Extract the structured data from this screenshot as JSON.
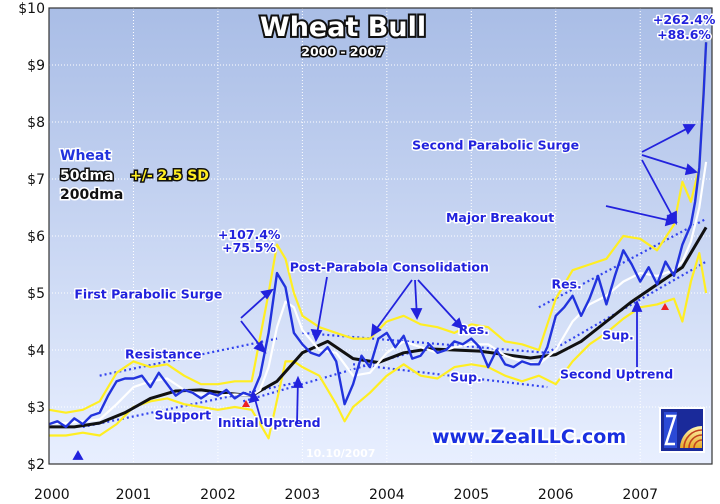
{
  "chart_data": {
    "type": "line",
    "title": "Wheat Bull",
    "subtitle": "2000 - 2007",
    "xlim": [
      2000,
      2007.85
    ],
    "ylim": [
      2,
      10
    ],
    "x_ticks": [
      "2000",
      "2001",
      "2002",
      "2003",
      "2004",
      "2005",
      "2006",
      "2007"
    ],
    "y_ticks": [
      "$2",
      "$3",
      "$4",
      "$5",
      "$6",
      "$7",
      "$8",
      "$9",
      "$10"
    ],
    "grid": true,
    "legend_placement": "left",
    "legend": [
      {
        "label": "Wheat",
        "color": "#2233dd"
      },
      {
        "label": "50dma",
        "color": "#ffffff"
      },
      {
        "label": "+/- 2.5 SD",
        "color": "#ffee22"
      },
      {
        "label": "200dma",
        "color": "#111111"
      }
    ],
    "colors": {
      "wheat": "#2233dd",
      "dma50": "#ffffff",
      "bands": "#ffee22",
      "dma200": "#111111",
      "background_top": "#a9bde6",
      "background_bottom": "#e8efff",
      "annotation": "#2222dd",
      "gain_red": "#ee2222"
    },
    "series": [
      {
        "name": "Wheat",
        "key": "wheat",
        "x": [
          2000.0,
          2000.1,
          2000.2,
          2000.3,
          2000.4,
          2000.5,
          2000.6,
          2000.7,
          2000.8,
          2000.9,
          2001.0,
          2001.1,
          2001.2,
          2001.3,
          2001.4,
          2001.5,
          2001.6,
          2001.7,
          2001.8,
          2001.9,
          2002.0,
          2002.1,
          2002.2,
          2002.3,
          2002.4,
          2002.5,
          2002.6,
          2002.7,
          2002.8,
          2002.9,
          2003.0,
          2003.1,
          2003.2,
          2003.3,
          2003.4,
          2003.5,
          2003.6,
          2003.7,
          2003.8,
          2003.9,
          2004.0,
          2004.1,
          2004.2,
          2004.3,
          2004.4,
          2004.5,
          2004.6,
          2004.7,
          2004.8,
          2004.9,
          2005.0,
          2005.1,
          2005.2,
          2005.3,
          2005.4,
          2005.5,
          2005.6,
          2005.7,
          2005.8,
          2005.9,
          2006.0,
          2006.1,
          2006.2,
          2006.3,
          2006.4,
          2006.5,
          2006.6,
          2006.7,
          2006.8,
          2006.9,
          2007.0,
          2007.1,
          2007.2,
          2007.3,
          2007.4,
          2007.5,
          2007.6,
          2007.65,
          2007.7,
          2007.75,
          2007.78
        ],
        "y": [
          2.7,
          2.75,
          2.65,
          2.8,
          2.7,
          2.85,
          2.9,
          3.2,
          3.45,
          3.5,
          3.5,
          3.55,
          3.35,
          3.6,
          3.4,
          3.2,
          3.3,
          3.25,
          3.15,
          3.25,
          3.2,
          3.3,
          3.15,
          3.25,
          3.2,
          3.55,
          4.3,
          5.35,
          5.1,
          4.3,
          4.1,
          3.95,
          3.9,
          4.05,
          3.8,
          3.05,
          3.4,
          3.9,
          3.7,
          4.2,
          4.3,
          4.05,
          4.25,
          3.85,
          3.9,
          4.1,
          3.95,
          4.0,
          4.15,
          4.1,
          4.2,
          4.05,
          3.7,
          4.0,
          3.75,
          3.7,
          3.8,
          3.75,
          3.75,
          4.05,
          4.6,
          4.75,
          4.95,
          4.6,
          4.9,
          5.3,
          4.8,
          5.3,
          5.75,
          5.5,
          5.2,
          5.45,
          5.15,
          5.55,
          5.3,
          5.85,
          6.2,
          6.6,
          7.2,
          8.5,
          9.4
        ]
      },
      {
        "name": "50dma",
        "key": "dma50",
        "x": [
          2000.0,
          2000.2,
          2000.4,
          2000.6,
          2000.8,
          2001.0,
          2001.2,
          2001.4,
          2001.6,
          2001.8,
          2002.0,
          2002.2,
          2002.4,
          2002.5,
          2002.6,
          2002.7,
          2002.8,
          2002.9,
          2003.0,
          2003.2,
          2003.4,
          2003.6,
          2003.8,
          2004.0,
          2004.2,
          2004.4,
          2004.6,
          2004.8,
          2005.0,
          2005.2,
          2005.4,
          2005.6,
          2005.8,
          2006.0,
          2006.2,
          2006.4,
          2006.6,
          2006.8,
          2007.0,
          2007.2,
          2007.4,
          2007.5,
          2007.6,
          2007.7,
          2007.78
        ],
        "y": [
          2.72,
          2.72,
          2.75,
          2.78,
          3.05,
          3.35,
          3.45,
          3.5,
          3.3,
          3.22,
          3.2,
          3.22,
          3.2,
          3.3,
          3.7,
          4.4,
          4.85,
          4.75,
          4.35,
          4.0,
          3.95,
          3.55,
          3.6,
          3.95,
          4.15,
          4.05,
          3.95,
          4.05,
          4.1,
          4.1,
          3.9,
          3.8,
          3.75,
          4.0,
          4.5,
          4.8,
          4.95,
          5.2,
          5.35,
          5.3,
          5.4,
          5.55,
          5.9,
          6.5,
          7.3
        ]
      },
      {
        "name": "+2.5 SD",
        "key": "upper",
        "x": [
          2000.0,
          2000.2,
          2000.4,
          2000.6,
          2000.8,
          2001.0,
          2001.2,
          2001.4,
          2001.6,
          2001.8,
          2002.0,
          2002.2,
          2002.4,
          2002.6,
          2002.7,
          2002.8,
          2002.9,
          2003.0,
          2003.2,
          2003.4,
          2003.6,
          2003.8,
          2004.0,
          2004.2,
          2004.4,
          2004.6,
          2004.8,
          2005.0,
          2005.2,
          2005.4,
          2005.6,
          2005.8,
          2006.0,
          2006.2,
          2006.4,
          2006.6,
          2006.8,
          2007.0,
          2007.2,
          2007.4,
          2007.5,
          2007.6,
          2007.7,
          2007.78
        ],
        "y": [
          2.95,
          2.9,
          2.95,
          3.1,
          3.6,
          3.8,
          3.7,
          3.75,
          3.55,
          3.4,
          3.4,
          3.45,
          3.45,
          5.0,
          5.85,
          5.6,
          5.0,
          4.6,
          4.4,
          4.3,
          4.2,
          4.2,
          4.5,
          4.6,
          4.45,
          4.4,
          4.3,
          4.45,
          4.4,
          4.15,
          4.1,
          4.0,
          4.9,
          5.4,
          5.5,
          5.6,
          6.0,
          5.95,
          5.75,
          6.2,
          6.95,
          6.6,
          7.2,
          9.4
        ]
      },
      {
        "name": "-2.5 SD",
        "key": "lower",
        "x": [
          2000.0,
          2000.2,
          2000.4,
          2000.6,
          2000.8,
          2001.0,
          2001.2,
          2001.4,
          2001.6,
          2001.8,
          2002.0,
          2002.2,
          2002.4,
          2002.6,
          2002.8,
          2002.9,
          2003.0,
          2003.2,
          2003.4,
          2003.5,
          2003.6,
          2003.8,
          2004.0,
          2004.2,
          2004.4,
          2004.6,
          2004.8,
          2005.0,
          2005.2,
          2005.4,
          2005.6,
          2005.8,
          2006.0,
          2006.2,
          2006.4,
          2006.6,
          2006.8,
          2007.0,
          2007.2,
          2007.4,
          2007.5,
          2007.6,
          2007.7,
          2007.78
        ],
        "y": [
          2.5,
          2.5,
          2.55,
          2.5,
          2.7,
          3.0,
          3.1,
          3.15,
          3.05,
          3.0,
          2.95,
          3.0,
          2.95,
          2.45,
          3.8,
          3.8,
          3.7,
          3.55,
          3.05,
          2.75,
          3.0,
          3.25,
          3.55,
          3.75,
          3.55,
          3.5,
          3.7,
          3.75,
          3.7,
          3.55,
          3.45,
          3.55,
          3.4,
          3.8,
          4.1,
          4.3,
          4.55,
          4.75,
          4.8,
          4.9,
          4.5,
          5.2,
          5.7,
          5.0
        ]
      },
      {
        "name": "200dma",
        "key": "dma200",
        "x": [
          2000.0,
          2000.3,
          2000.6,
          2000.9,
          2001.2,
          2001.5,
          2001.8,
          2002.1,
          2002.4,
          2002.7,
          2003.0,
          2003.3,
          2003.6,
          2003.9,
          2004.2,
          2004.5,
          2004.8,
          2005.1,
          2005.4,
          2005.7,
          2006.0,
          2006.3,
          2006.6,
          2006.9,
          2007.2,
          2007.5,
          2007.78
        ],
        "y": [
          2.65,
          2.65,
          2.72,
          2.9,
          3.15,
          3.28,
          3.3,
          3.24,
          3.2,
          3.45,
          3.95,
          4.15,
          3.85,
          3.78,
          3.95,
          4.02,
          4.0,
          3.98,
          3.92,
          3.86,
          3.92,
          4.15,
          4.5,
          4.85,
          5.15,
          5.45,
          6.15
        ]
      }
    ],
    "trendlines": [
      {
        "name": "Resistance",
        "x": [
          2000.6,
          2002.7
        ],
        "y": [
          3.55,
          4.2
        ]
      },
      {
        "name": "Support",
        "x": [
          2000.4,
          2003.0
        ],
        "y": [
          2.65,
          3.45
        ]
      },
      {
        "name": "Initial Uptrend",
        "x": [
          2002.3,
          2004.5
        ],
        "y": [
          3.1,
          4.05
        ]
      },
      {
        "name": "Res.",
        "x": [
          2003.0,
          2005.9
        ],
        "y": [
          4.3,
          3.95
        ]
      },
      {
        "name": "Sup.",
        "x": [
          2003.6,
          2005.9
        ],
        "y": [
          3.75,
          3.35
        ]
      },
      {
        "name": "Res. 2",
        "x": [
          2005.8,
          2007.78
        ],
        "y": [
          4.75,
          6.3
        ]
      },
      {
        "name": "Sup. 2",
        "x": [
          2005.9,
          2007.78
        ],
        "y": [
          3.95,
          5.55
        ]
      }
    ],
    "annotations": [
      {
        "text": "First Parabolic Surge",
        "x": 2000.3,
        "y": 4.9
      },
      {
        "text": "Resistance",
        "x": 2000.9,
        "y": 3.85
      },
      {
        "text": "Support",
        "x": 2001.25,
        "y": 2.78
      },
      {
        "text": "Initial Uptrend",
        "x": 2002.0,
        "y": 2.65
      },
      {
        "text": "Post-Parabola Consolidation",
        "x": 2002.85,
        "y": 5.38
      },
      {
        "text": "Res.",
        "x": 2004.85,
        "y": 4.28
      },
      {
        "text": "Sup.",
        "x": 2004.75,
        "y": 3.45
      },
      {
        "text": "Res.",
        "x": 2005.95,
        "y": 5.08
      },
      {
        "text": "Sup.",
        "x": 2006.55,
        "y": 4.18
      },
      {
        "text": "Second Uptrend",
        "x": 2006.05,
        "y": 3.5
      },
      {
        "text": "Major Breakout",
        "x": 2004.7,
        "y": 6.25
      },
      {
        "text": "Second Parabolic Surge",
        "x": 2004.3,
        "y": 7.52
      }
    ],
    "gain_labels": [
      {
        "text": "+107.4%",
        "color": "#2222dd",
        "x": 2002.0,
        "y": 5.95
      },
      {
        "text": "+75.5%",
        "color": "#ee2222",
        "x": 2002.05,
        "y": 5.72
      },
      {
        "text": "+262.4%",
        "color": "#2222dd",
        "x": 2007.15,
        "y": 9.72
      },
      {
        "text": "+88.6%",
        "color": "#ee2222",
        "x": 2007.2,
        "y": 9.46
      }
    ],
    "footer": {
      "website": "www.ZealLLC.com",
      "date": "10.10/2007"
    }
  }
}
